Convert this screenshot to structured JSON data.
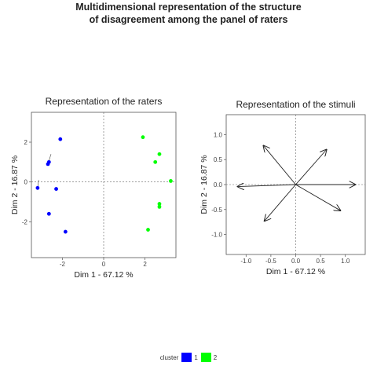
{
  "title_line1": "Multidimensional representation of the structure",
  "title_line2": "of disagreement among the panel of raters",
  "colors": {
    "cluster1": "#0000ff",
    "cluster2": "#00ff00"
  },
  "chart_data": [
    {
      "type": "scatter",
      "title": "Representation of the raters",
      "xlabel": "Dim 1 - 67.12 %",
      "ylabel": "Dim 2 - 16.87 %",
      "xlim": [
        -3.5,
        3.5
      ],
      "ylim": [
        -3.8,
        3.5
      ],
      "xticks": [
        -2,
        0,
        2
      ],
      "yticks": [
        -2,
        0,
        2
      ],
      "xtick_labels": [
        "-2",
        "0",
        "2"
      ],
      "ytick_labels": [
        "-2",
        "0",
        "2"
      ],
      "grid": false,
      "series": [
        {
          "cluster": "1",
          "points": [
            {
              "x": -2.1,
              "y": 2.15
            },
            {
              "x": -2.65,
              "y": 1.0
            },
            {
              "x": -2.7,
              "y": 0.9
            },
            {
              "x": -3.2,
              "y": -0.3
            },
            {
              "x": -2.3,
              "y": -0.35
            },
            {
              "x": -2.65,
              "y": -1.6
            },
            {
              "x": -1.85,
              "y": -2.5
            }
          ]
        },
        {
          "cluster": "2",
          "points": [
            {
              "x": 1.9,
              "y": 2.25
            },
            {
              "x": 2.7,
              "y": 1.4
            },
            {
              "x": 2.5,
              "y": 1.0
            },
            {
              "x": 3.25,
              "y": 0.05
            },
            {
              "x": 2.7,
              "y": -1.1
            },
            {
              "x": 2.7,
              "y": -1.25
            },
            {
              "x": 2.15,
              "y": -2.4
            }
          ]
        }
      ]
    },
    {
      "type": "vector",
      "title": "Representation of the stimuli",
      "xlabel": "Dim 1 - 67.12 %",
      "ylabel": "Dim 2 - 16.87 %",
      "xlim": [
        -1.4,
        1.4
      ],
      "ylim": [
        -1.4,
        1.4
      ],
      "xticks": [
        -1.0,
        -0.5,
        0.0,
        0.5,
        1.0
      ],
      "yticks": [
        -1.0,
        -0.5,
        0.0,
        0.5,
        1.0
      ],
      "xtick_labels": [
        "-1.0",
        "-0.5",
        "0.0",
        "0.5",
        "1.0"
      ],
      "ytick_labels": [
        "-1.0",
        "-0.5",
        "0.0",
        "0.5",
        "1.0"
      ],
      "grid": false,
      "vectors": [
        {
          "x": -0.65,
          "y": 0.78
        },
        {
          "x": 0.62,
          "y": 0.7
        },
        {
          "x": -1.17,
          "y": -0.04
        },
        {
          "x": 1.2,
          "y": 0.0
        },
        {
          "x": -0.63,
          "y": -0.73
        },
        {
          "x": 0.9,
          "y": -0.52
        }
      ]
    }
  ],
  "legend": {
    "title": "cluster",
    "items": [
      "1",
      "2"
    ]
  }
}
